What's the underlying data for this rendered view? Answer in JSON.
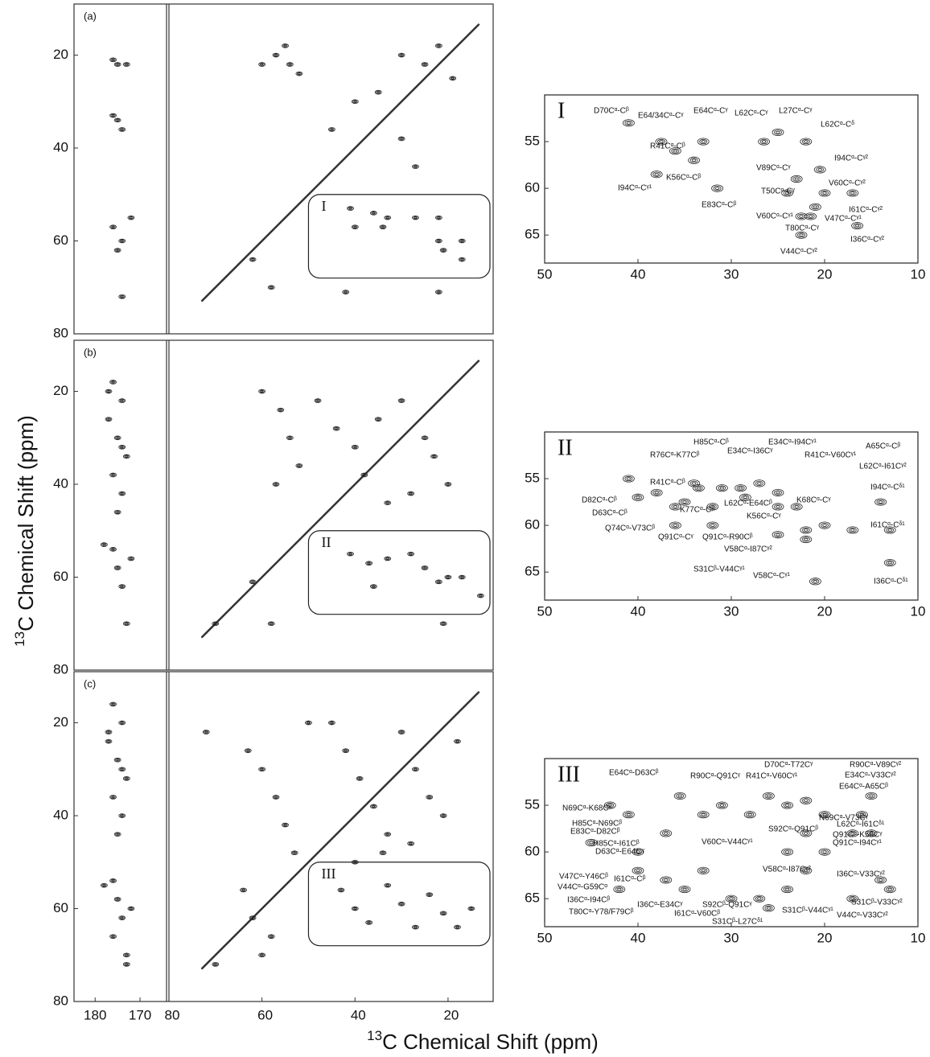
{
  "axis_label_mass": "13",
  "axis_label": "C Chemical Shift (ppm)",
  "chart_data": [
    {
      "type": "contour",
      "panel_label": "(a)",
      "ylim": [
        9,
        80
      ],
      "yticks": [
        20,
        40,
        60,
        80
      ],
      "strip_xlim": [
        184.7,
        164.1
      ],
      "xlim": [
        80,
        10.3
      ],
      "box_label": "I",
      "strip_peaks": {
        "x": [
          176,
          175,
          173,
          176,
          174,
          175,
          172,
          176,
          174,
          175,
          174
        ],
        "y": [
          21,
          22,
          22,
          33,
          36,
          34,
          55,
          57,
          60,
          62,
          72
        ]
      },
      "peaks": {
        "x": [
          60,
          57,
          54,
          55,
          52,
          45,
          40,
          35,
          30,
          25,
          22,
          19,
          30,
          27,
          62,
          58,
          42,
          22,
          41,
          36,
          33,
          27,
          22,
          40,
          34,
          22,
          21,
          17,
          17
        ],
        "y": [
          22,
          20,
          22,
          18,
          24,
          36,
          30,
          28,
          20,
          22,
          18,
          25,
          38,
          44,
          64,
          70,
          71,
          71,
          53,
          54,
          55,
          55,
          55,
          57,
          57,
          60,
          62,
          60,
          64
        ]
      }
    },
    {
      "type": "contour",
      "panel_label": "(b)",
      "ylim": [
        9,
        80
      ],
      "yticks": [
        20,
        40,
        60,
        80
      ],
      "strip_xlim": [
        184.7,
        164.1
      ],
      "xlim": [
        80,
        10.3
      ],
      "box_label": "II",
      "strip_peaks": {
        "x": [
          176,
          174,
          177,
          175,
          173,
          176,
          174,
          175,
          177,
          174,
          176,
          175,
          174,
          173,
          178,
          172
        ],
        "y": [
          18,
          22,
          26,
          30,
          34,
          38,
          42,
          46,
          20,
          32,
          54,
          58,
          62,
          70,
          53,
          56
        ]
      },
      "peaks": {
        "x": [
          60,
          56,
          54,
          52,
          57,
          48,
          44,
          40,
          35,
          30,
          25,
          23,
          20,
          28,
          33,
          38,
          62,
          70,
          58,
          41,
          37,
          33,
          28,
          25,
          22,
          20,
          17,
          13,
          21,
          36
        ],
        "y": [
          20,
          24,
          30,
          36,
          40,
          22,
          28,
          32,
          26,
          22,
          30,
          34,
          40,
          42,
          44,
          38,
          61,
          70,
          70,
          55,
          57,
          56,
          55,
          58,
          61,
          60,
          60,
          64,
          70,
          62
        ]
      }
    },
    {
      "type": "contour",
      "panel_label": "(c)",
      "ylim": [
        9,
        80
      ],
      "yticks": [
        20,
        40,
        60,
        80
      ],
      "strip_xlim": [
        184.7,
        164.1
      ],
      "strip_xticks": [
        180,
        170
      ],
      "xlim": [
        80,
        10.3
      ],
      "xticks": [
        80,
        60,
        40,
        20
      ],
      "box_label": "III",
      "strip_peaks": {
        "x": [
          176,
          174,
          177,
          175,
          173,
          176,
          174,
          175,
          177,
          174,
          176,
          175,
          174,
          173,
          178,
          172,
          176,
          173
        ],
        "y": [
          16,
          20,
          24,
          28,
          32,
          36,
          40,
          44,
          22,
          30,
          54,
          58,
          62,
          70,
          55,
          60,
          66,
          72
        ]
      },
      "peaks": {
        "x": [
          72,
          63,
          60,
          57,
          55,
          53,
          50,
          45,
          42,
          39,
          36,
          33,
          30,
          27,
          24,
          21,
          18,
          28,
          34,
          40,
          62,
          58,
          70,
          43,
          40,
          37,
          33,
          30,
          27,
          24,
          21,
          18,
          15,
          64,
          60
        ],
        "y": [
          22,
          26,
          30,
          36,
          42,
          48,
          20,
          20,
          26,
          32,
          38,
          44,
          22,
          30,
          36,
          40,
          24,
          46,
          48,
          50,
          62,
          66,
          72,
          56,
          60,
          63,
          55,
          59,
          64,
          57,
          61,
          64,
          60,
          56,
          70
        ]
      }
    },
    {
      "type": "contour",
      "panel_label": "I",
      "xlim": [
        50,
        10
      ],
      "ylim": [
        50,
        68
      ],
      "xticks": [
        50,
        40,
        30,
        20,
        10
      ],
      "yticks": [
        55,
        60,
        65
      ],
      "peaks": {
        "x": [
          41,
          37.5,
          33,
          26.5,
          25,
          22,
          36,
          34,
          20.5,
          23,
          24,
          38,
          31.5,
          20,
          21,
          17,
          22.5,
          21.5,
          16.5,
          22.5
        ],
        "y": [
          53,
          55,
          55,
          55,
          54,
          55,
          56,
          57,
          58,
          59,
          60.5,
          58.5,
          60,
          60.5,
          62,
          60.5,
          63,
          63,
          64,
          65
        ]
      },
      "annotations": [
        "D70Cᵅ-Cᵝ",
        "E64/34Cᵅ-Cᵞ",
        "E64Cᵅ-Cᵞ",
        "L62Cᵅ-Cᵞ",
        "L27Cᵅ-Cᵞ",
        "L62Cᵅ-Cᵟ",
        "R41Cᵅ-Cᵝ",
        "I94Cᵅ-Cᵞ²",
        "V89Cᵅ-Cᵞ",
        "K56Cᵅ-Cᵝ",
        "I94Cᵅ-Cᵞ¹",
        "T50Cᵅ-Cᵞ",
        "V60Cᵅ-Cᵞ²",
        "E83Cᵅ-Cᵝ",
        "V60Cᵅ-Cᵞ¹",
        "I61Cᵅ-Cᵞ²",
        "V47Cᵅ-Cᵞ¹",
        "T80Cᵅ-Cᵞ",
        "I36Cᵅ-Cᵞ²",
        "V44Cᵅ-Cᵞ²"
      ]
    },
    {
      "type": "contour",
      "panel_label": "II",
      "xlim": [
        50,
        10
      ],
      "ylim": [
        50,
        68
      ],
      "xticks": [
        50,
        40,
        30,
        20,
        10
      ],
      "yticks": [
        55,
        60,
        65
      ],
      "peaks": {
        "x": [
          41,
          40,
          38,
          35,
          33.5,
          34,
          31,
          32,
          29,
          28.5,
          27,
          25,
          25,
          23,
          22,
          22,
          20,
          17,
          14,
          13,
          13,
          21,
          25,
          36,
          36,
          32
        ],
        "y": [
          55,
          57,
          56.5,
          57.5,
          56,
          55.5,
          56,
          58,
          56,
          57,
          55.5,
          56.5,
          58,
          58,
          60.5,
          61.5,
          60,
          60.5,
          57.5,
          60.5,
          64,
          66,
          61,
          58,
          60,
          60
        ]
      },
      "annotations": [
        "H85Cᵅ-Cᵝ",
        "E34Cᵅ-I94Cᵞ¹",
        "E34Cᵅ-I36Cᵞ",
        "A65Cᵅ-Cᵝ",
        "R76Cᵅ-K77Cᵝ",
        "R41Cᵅ-V60Cᵞ¹",
        "L62Cᵅ-I61Cᵞ²",
        "R41Cᵅ-Cᵝ",
        "D82Cᵅ-Cᵝ",
        "L62Cᵅ-E64Cᵝ",
        "K68Cᵅ-Cᵞ",
        "I94Cᵅ-Cᵟ¹",
        "D63Cᵅ-Cᵝ",
        "K77Cᵅ-Cᵝ",
        "K56Cᵅ-Cᵞ",
        "Q74Cᵅ-V73Cᵝ",
        "Q91Cᵅ-Cᵞ",
        "Q91Cᵅ-R90Cᵝ",
        "I61Cᵅ-Cᵟ¹",
        "V58Cᵅ-I87Cᵞ²",
        "S31Cᵝ-V44Cᵞ¹",
        "V58Cᵅ-Cᵞ¹",
        "I36Cᵅ-Cᵟ¹"
      ]
    },
    {
      "type": "contour",
      "panel_label": "III",
      "xlim": [
        50,
        10
      ],
      "ylim": [
        50,
        68
      ],
      "xticks": [
        50,
        40,
        30,
        20,
        10
      ],
      "yticks": [
        55,
        60,
        65
      ],
      "peaks": {
        "x": [
          45,
          43,
          41,
          40,
          37,
          35.5,
          33,
          31,
          28,
          26,
          24,
          22,
          20,
          22,
          24,
          22,
          20,
          24,
          26,
          27,
          30,
          33,
          35,
          37,
          40,
          42,
          17,
          16,
          15,
          14,
          13,
          17,
          15
        ],
        "y": [
          59,
          55,
          56,
          60,
          58,
          54,
          56,
          55,
          56,
          54,
          55,
          54.5,
          56,
          58,
          60,
          62,
          60,
          64,
          66,
          65,
          65,
          62,
          64,
          63,
          62,
          64,
          58,
          56,
          54,
          63,
          64,
          65,
          58
        ]
      },
      "annotations": [
        "E64Cᵅ-D63Cᵝ",
        "R90Cᵅ-Q91Cᵞ",
        "D70Cᵅ-T72Cᵞ",
        "R41Cᵅ-V60Cᵞ¹",
        "R90Cᵅ-V89Cᵞ²",
        "E34Cᵅ-V33Cᵞ²",
        "E64Cᵅ-A65Cᵝ",
        "N69Cᵅ-K68Cᵋ",
        "N69Cᵅ-V73Cᵞ",
        "H85Cᵅ-N69Cᵝ",
        "E83Cᵅ-D82Cᵝ",
        "L62Cᵅ-I61Cᵟ¹",
        "S92Cᵅ-Q91Cᵝ",
        "Q91Cᵅ-K56Cᵞ",
        "H85Cᵅ-I61Cᵝ",
        "V60Cᵅ-V44Cᵞ¹",
        "Q91Cᵅ-I94Cᵞ¹",
        "D63Cᵅ-E64Cᵞ",
        "V58Cᵅ-I87Cᵞ²",
        "V47Cᵅ-Y46Cᵝ",
        "I61Cᵅ-Cᵝ",
        "I36Cᵅ-V33Cᵞ²",
        "V44Cᵅ-G59Cᵅ",
        "I36Cᵅ-I94Cᵝ",
        "S31Cᵝ-V44Cᵞ¹",
        "S31Cᵝ-V33Cᵞ²",
        "I36Cᵅ-E34Cᵞ",
        "S92Cᵝ-Q91Cᵞ",
        "T80Cᵅ-Y78/F79Cᵝ",
        "I61Cᵅ-V60Cᵝ",
        "V44Cᵅ-V33Cᵞ²",
        "S31Cᵝ-L27Cᵟ¹"
      ]
    }
  ]
}
